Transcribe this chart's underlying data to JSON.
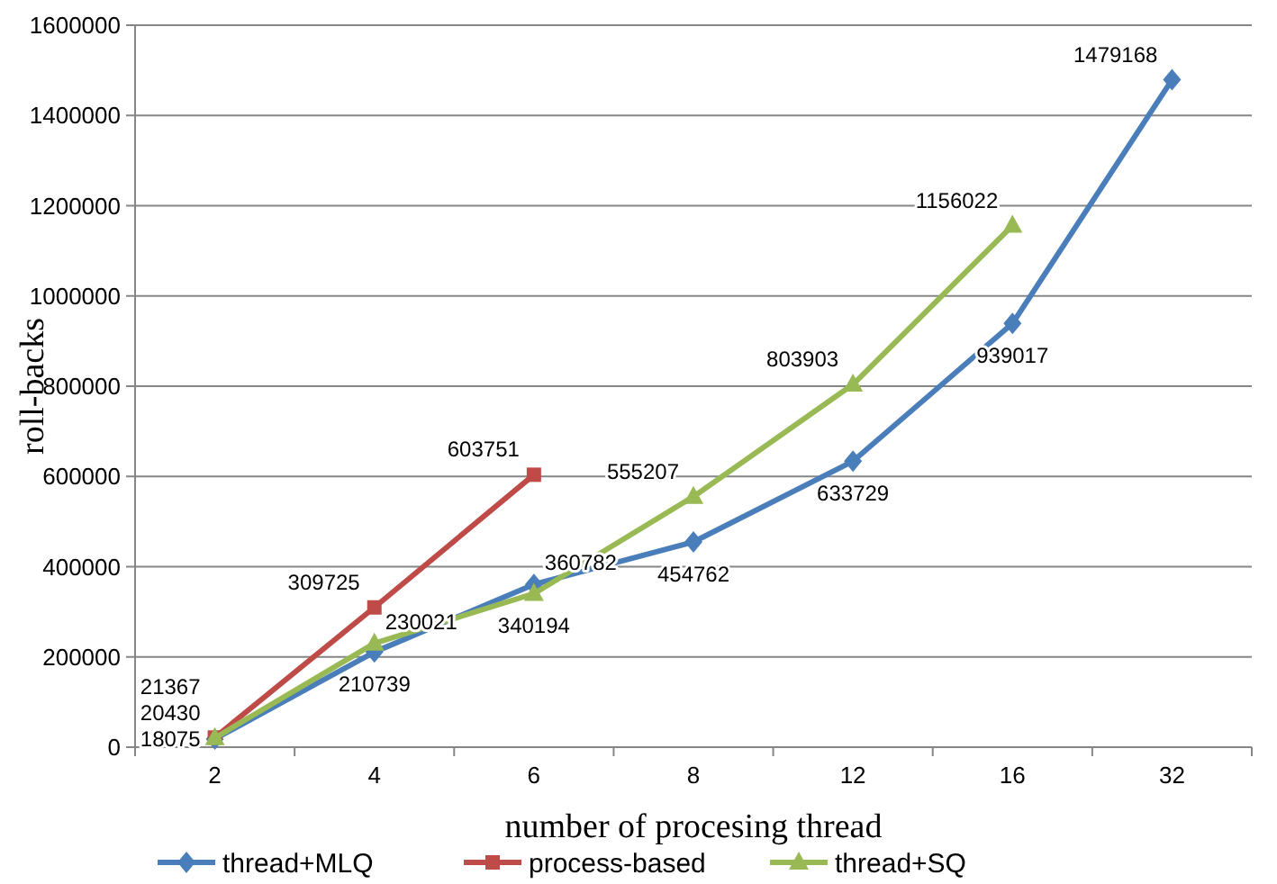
{
  "chart_data": {
    "type": "line",
    "xlabel": "number of procesing thread",
    "ylabel": "roll-backs",
    "categories": [
      "2",
      "4",
      "6",
      "8",
      "12",
      "16",
      "32"
    ],
    "series": [
      {
        "name": "thread+MLQ",
        "color": "#4a7ebb",
        "marker": "diamond",
        "values": [
          18075,
          210739,
          360782,
          454762,
          633729,
          939017,
          1479168
        ]
      },
      {
        "name": "process-based",
        "color": "#be4b48",
        "marker": "square",
        "values": [
          21367,
          309725,
          603751,
          null,
          null,
          null,
          null
        ]
      },
      {
        "name": "thread+SQ",
        "color": "#98b954",
        "marker": "triangle",
        "values": [
          20430,
          230021,
          340194,
          555207,
          803903,
          1156022,
          null
        ]
      }
    ],
    "ylim": [
      0,
      1600000
    ],
    "yticks": [
      0,
      200000,
      400000,
      600000,
      800000,
      1000000,
      1200000,
      1400000,
      1600000
    ],
    "grid": "y",
    "legend": "bottom",
    "data_labels": true
  }
}
